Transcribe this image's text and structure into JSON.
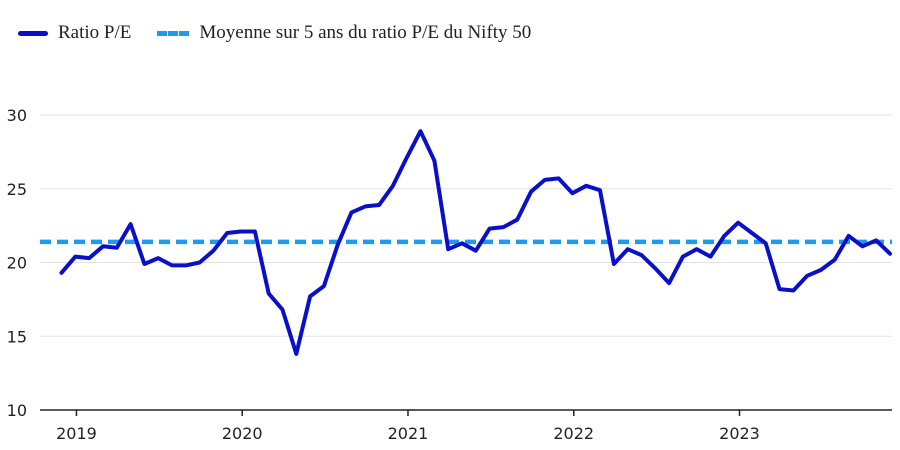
{
  "chart_data": {
    "type": "line",
    "title": "",
    "xlabel": "",
    "ylabel": "",
    "ylim": [
      10,
      30
    ],
    "yticks": [
      10,
      15,
      20,
      25,
      30
    ],
    "xticks": [
      "2019",
      "2020",
      "2021",
      "2022",
      "2023"
    ],
    "x_start": 2018.91,
    "x_step": 0.0833,
    "series": [
      {
        "name": "Ratio P/E",
        "color": "#0a10c8",
        "style": "solid",
        "values": [
          19.3,
          20.4,
          20.3,
          21.1,
          21.0,
          22.6,
          19.9,
          20.3,
          19.8,
          19.8,
          20.0,
          20.8,
          22.0,
          22.1,
          22.1,
          17.9,
          16.8,
          13.8,
          17.7,
          18.4,
          21.2,
          23.4,
          23.8,
          23.9,
          25.2,
          27.1,
          28.9,
          26.9,
          20.9,
          21.3,
          20.8,
          22.3,
          22.4,
          22.9,
          24.8,
          25.6,
          25.7,
          24.7,
          25.2,
          24.9,
          19.9,
          20.9,
          20.5,
          19.6,
          18.6,
          20.4,
          20.9,
          20.4,
          21.8,
          22.7,
          22.0,
          21.3,
          18.2,
          18.1,
          19.1,
          19.5,
          20.2,
          21.8,
          21.1,
          21.5,
          20.6
        ]
      },
      {
        "name": "Moyenne sur 5 ans du ratio P/E du Nifty 50",
        "color": "#1e9bf0",
        "style": "dashed",
        "values": [
          21.4
        ]
      }
    ]
  }
}
